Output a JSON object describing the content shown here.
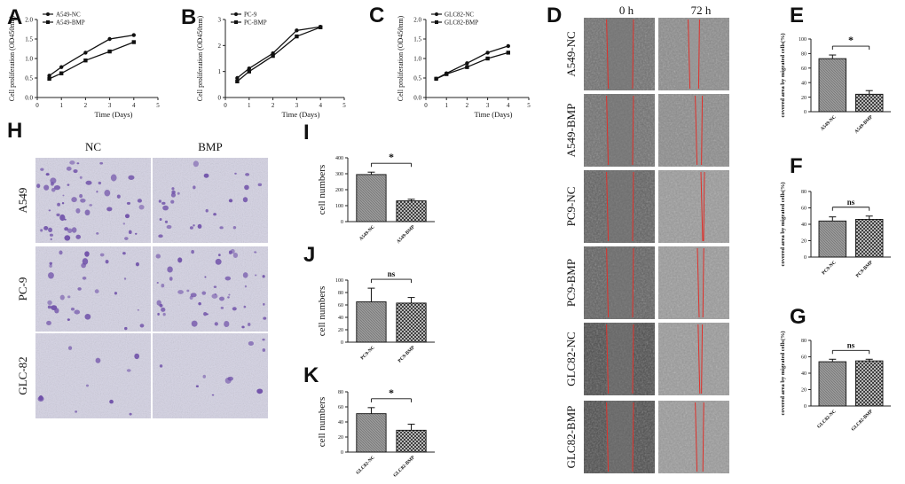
{
  "figure": {
    "letters": [
      "A",
      "B",
      "C",
      "D",
      "E",
      "H",
      "I",
      "F",
      "J",
      "G",
      "K"
    ]
  },
  "transwell": {
    "columns": [
      "NC",
      "BMP"
    ],
    "rows": [
      "A549",
      "PC-9",
      "GLC-82"
    ]
  },
  "wound": {
    "columns": [
      "0 h",
      "72 h"
    ],
    "rows": [
      "A549-NC",
      "A549-BMP",
      "PC9-NC",
      "PC9-BMP",
      "GLC82-NC",
      "GLC82-BMP"
    ]
  },
  "colors": {
    "transwell_stain": "#6e4fa8",
    "wound_edge": "#e0302a",
    "bar_fill": "#8c8c8c"
  },
  "chart_data": [
    {
      "id": "A",
      "type": "line",
      "xlabel": "Time (Days)",
      "ylabel": "Cell proliferation (OD450nm)",
      "xlim": [
        0,
        5
      ],
      "ylim": [
        0,
        2.0
      ],
      "xticks": [
        0,
        1,
        2,
        3,
        4,
        5
      ],
      "yticks": [
        0.0,
        0.5,
        1.0,
        1.5,
        2.0
      ],
      "series": [
        {
          "name": "A549-NC",
          "marker": "circle",
          "x": [
            0.5,
            1,
            2,
            3,
            4
          ],
          "y": [
            0.56,
            0.78,
            1.15,
            1.5,
            1.6
          ]
        },
        {
          "name": "A549-BMP",
          "marker": "square",
          "x": [
            0.5,
            1,
            2,
            3,
            4
          ],
          "y": [
            0.48,
            0.62,
            0.95,
            1.18,
            1.42
          ]
        }
      ]
    },
    {
      "id": "B",
      "type": "line",
      "xlabel": "Time (Days)",
      "ylabel": "Cell proliferation (OD450nm)",
      "xlim": [
        0,
        5
      ],
      "ylim": [
        0,
        3
      ],
      "xticks": [
        0,
        1,
        2,
        3,
        4,
        5
      ],
      "yticks": [
        0,
        1,
        2,
        3
      ],
      "series": [
        {
          "name": "PC-9",
          "marker": "circle",
          "x": [
            0.5,
            1,
            2,
            3,
            4
          ],
          "y": [
            0.75,
            1.12,
            1.7,
            2.58,
            2.72
          ]
        },
        {
          "name": "PC-BMP",
          "marker": "square",
          "x": [
            0.5,
            1,
            2,
            3,
            4
          ],
          "y": [
            0.62,
            1.0,
            1.6,
            2.35,
            2.7
          ]
        }
      ]
    },
    {
      "id": "C",
      "type": "line",
      "xlabel": "Time (Days)",
      "ylabel": "Cell proliferation (OD450nm)",
      "xlim": [
        0,
        5
      ],
      "ylim": [
        0,
        2.0
      ],
      "xticks": [
        0,
        1,
        2,
        3,
        4,
        5
      ],
      "yticks": [
        0.0,
        0.5,
        1.0,
        1.5,
        2.0
      ],
      "series": [
        {
          "name": "GLC82-NC",
          "marker": "circle",
          "x": [
            0.5,
            1,
            2,
            3,
            4
          ],
          "y": [
            0.48,
            0.62,
            0.88,
            1.15,
            1.32
          ]
        },
        {
          "name": "GLC82-BMP",
          "marker": "square",
          "x": [
            0.5,
            1,
            2,
            3,
            4
          ],
          "y": [
            0.48,
            0.6,
            0.78,
            1.0,
            1.15
          ]
        }
      ]
    },
    {
      "id": "E",
      "type": "bar",
      "ylabel": "covered area by migrated cells(%)",
      "categories": [
        "A549-NC",
        "A549-BMP"
      ],
      "values": [
        73,
        24
      ],
      "errors": [
        5,
        5
      ],
      "ylim": [
        0,
        100
      ],
      "yticks": [
        0,
        20,
        40,
        60,
        80,
        100
      ],
      "significance": "*"
    },
    {
      "id": "F",
      "type": "bar",
      "ylabel": "covered area by migrated cells(%)",
      "categories": [
        "PC9-NC",
        "PC9-BMP"
      ],
      "values": [
        44,
        46
      ],
      "errors": [
        5,
        4
      ],
      "ylim": [
        0,
        80
      ],
      "yticks": [
        0,
        20,
        40,
        60,
        80
      ],
      "significance": "ns"
    },
    {
      "id": "G",
      "type": "bar",
      "ylabel": "covered area by migrated cells(%)",
      "categories": [
        "GLC82-NC",
        "GLC82-BMP"
      ],
      "values": [
        54,
        55
      ],
      "errors": [
        3,
        2
      ],
      "ylim": [
        0,
        80
      ],
      "yticks": [
        0,
        20,
        40,
        60,
        80
      ],
      "significance": "ns"
    },
    {
      "id": "I",
      "type": "bar",
      "ylabel": "cell numbers",
      "categories": [
        "A549-NC",
        "A549-BMP"
      ],
      "values": [
        295,
        130
      ],
      "errors": [
        15,
        10
      ],
      "ylim": [
        0,
        400
      ],
      "yticks": [
        0,
        100,
        200,
        300,
        400
      ],
      "significance": "*"
    },
    {
      "id": "J",
      "type": "bar",
      "ylabel": "cell numbers",
      "categories": [
        "PC9-NC",
        "PC9-BMP"
      ],
      "values": [
        65,
        63
      ],
      "errors": [
        22,
        9
      ],
      "ylim": [
        0,
        100
      ],
      "yticks": [
        0,
        20,
        40,
        60,
        80,
        100
      ],
      "significance": "ns"
    },
    {
      "id": "K",
      "type": "bar",
      "ylabel": "cell numbers",
      "categories": [
        "GLC82-NC",
        "GLC82-BMP"
      ],
      "values": [
        51,
        29
      ],
      "errors": [
        8,
        8
      ],
      "ylim": [
        0,
        80
      ],
      "yticks": [
        0,
        20,
        40,
        60,
        80
      ],
      "significance": "*"
    }
  ]
}
